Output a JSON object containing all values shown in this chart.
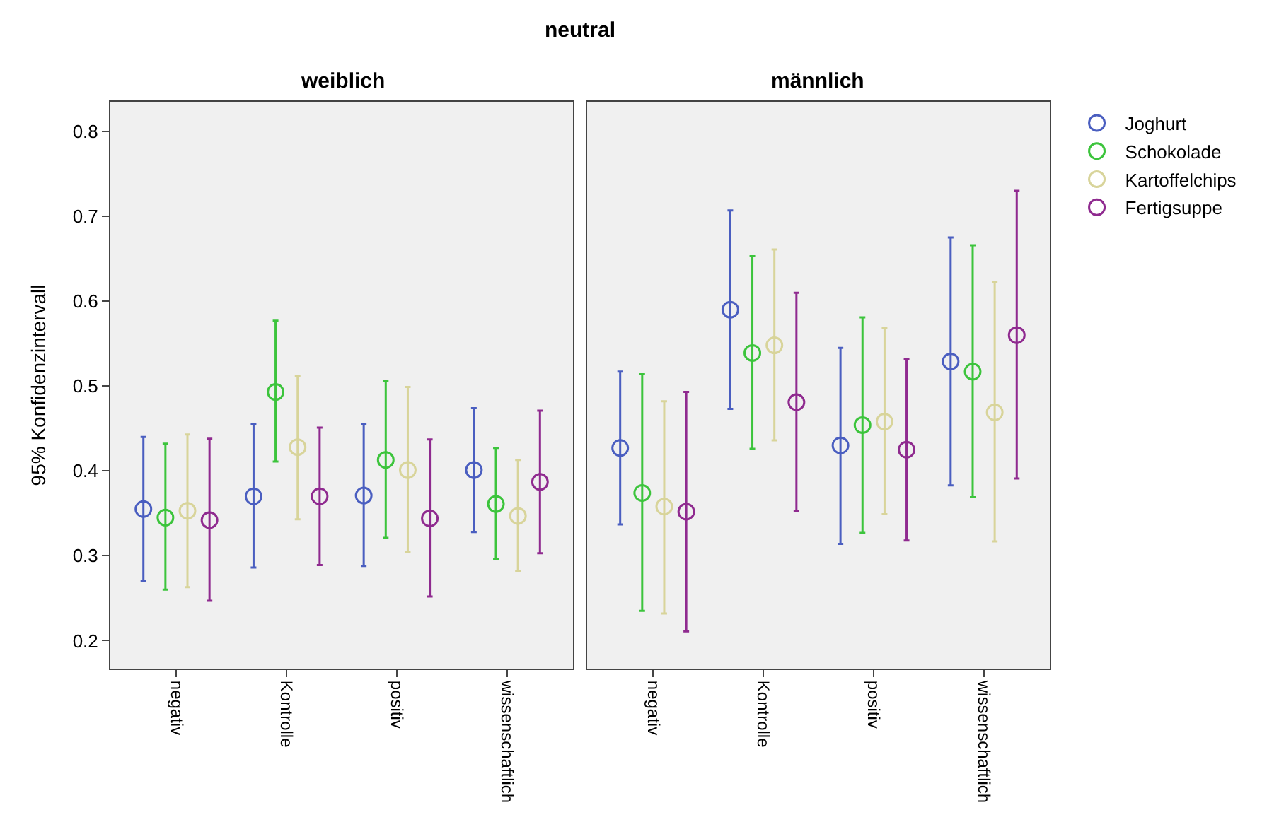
{
  "chart_data": [
    {
      "type": "scatter",
      "title": "weiblich",
      "annotations": [
        "neutral"
      ],
      "ylabel": "95% Konfidenzintervall",
      "categories": [
        "negativ",
        "Kontrolle",
        "positiv",
        "wissenschaftlich"
      ],
      "ylim": [
        0.167,
        0.835
      ],
      "yticks": [
        0.2,
        0.3,
        0.4,
        0.5,
        0.6,
        0.7,
        0.8
      ],
      "grid": false,
      "marker": "circle",
      "series": [
        {
          "color": "#4a5ec0",
          "values": [
            0.355,
            0.37,
            0.371,
            0.401
          ],
          "errors": [
            [
              0.27,
              0.44
            ],
            [
              0.286,
              0.455
            ],
            [
              0.288,
              0.455
            ],
            [
              0.328,
              0.474
            ]
          ]
        },
        {
          "color": "#3cc43c",
          "values": [
            0.345,
            0.493,
            0.413,
            0.361
          ],
          "errors": [
            [
              0.26,
              0.432
            ],
            [
              0.411,
              0.577
            ],
            [
              0.321,
              0.506
            ],
            [
              0.296,
              0.427
            ]
          ]
        },
        {
          "color": "#d8d49a",
          "values": [
            0.353,
            0.428,
            0.401,
            0.347
          ],
          "errors": [
            [
              0.263,
              0.443
            ],
            [
              0.343,
              0.512
            ],
            [
              0.304,
              0.499
            ],
            [
              0.282,
              0.413
            ]
          ]
        },
        {
          "color": "#8f2a8f",
          "values": [
            0.342,
            0.37,
            0.344,
            0.387
          ],
          "errors": [
            [
              0.247,
              0.438
            ],
            [
              0.289,
              0.451
            ],
            [
              0.252,
              0.437
            ],
            [
              0.303,
              0.471
            ]
          ]
        }
      ]
    },
    {
      "type": "scatter",
      "title": "männlich",
      "categories": [
        "negativ",
        "Kontrolle",
        "positiv",
        "wissenschaftlich"
      ],
      "ylim": [
        0.167,
        0.835
      ],
      "tick_labels": "x",
      "grid": false,
      "legend": "right",
      "marker": "circle",
      "series": [
        {
          "name": "Joghurt",
          "color": "#4a5ec0",
          "values": [
            0.427,
            0.59,
            0.43,
            0.529
          ],
          "errors": [
            [
              0.337,
              0.517
            ],
            [
              0.473,
              0.707
            ],
            [
              0.314,
              0.545
            ],
            [
              0.383,
              0.675
            ]
          ]
        },
        {
          "name": "Schokolade",
          "color": "#3cc43c",
          "values": [
            0.374,
            0.539,
            0.454,
            0.517
          ],
          "errors": [
            [
              0.235,
              0.514
            ],
            [
              0.426,
              0.653
            ],
            [
              0.327,
              0.581
            ],
            [
              0.369,
              0.666
            ]
          ]
        },
        {
          "name": "Kartoffelchips",
          "color": "#d8d49a",
          "values": [
            0.358,
            0.548,
            0.458,
            0.469
          ],
          "errors": [
            [
              0.232,
              0.482
            ],
            [
              0.436,
              0.661
            ],
            [
              0.349,
              0.568
            ],
            [
              0.317,
              0.623
            ]
          ]
        },
        {
          "name": "Fertigsuppe",
          "color": "#8f2a8f",
          "values": [
            0.352,
            0.481,
            0.425,
            0.56
          ],
          "errors": [
            [
              0.211,
              0.493
            ],
            [
              0.353,
              0.61
            ],
            [
              0.318,
              0.532
            ],
            [
              0.391,
              0.73
            ]
          ]
        }
      ]
    }
  ]
}
